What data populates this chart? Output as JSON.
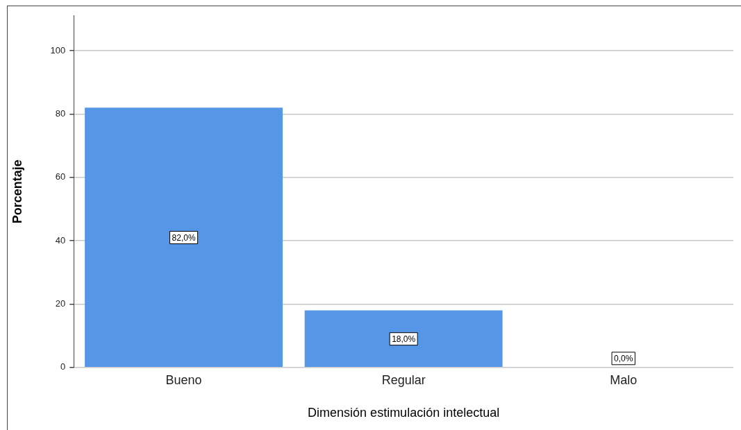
{
  "chart_data": {
    "type": "bar",
    "xlabel": "Dimensión estimulación intelectual",
    "ylabel": "Porcentaje",
    "categories": [
      "Bueno",
      "Regular",
      "Malo"
    ],
    "values": [
      82,
      18,
      0
    ],
    "color": "#5596e6",
    "value_labels": [
      "82,0%",
      "18,0%",
      "0,0%"
    ],
    "ylim": [
      0,
      111
    ],
    "yticks": [
      0,
      20,
      40,
      60,
      80,
      100
    ],
    "grid": "y"
  }
}
